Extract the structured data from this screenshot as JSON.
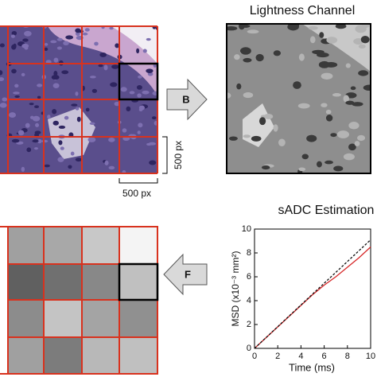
{
  "panel_a": {
    "scale_vertical": "500 px",
    "scale_horizontal": "500 px"
  },
  "arrow_b": {
    "label": "B"
  },
  "lightness_channel": {
    "title": "Lightness Channel"
  },
  "arrow_f": {
    "label": "F"
  },
  "chart_data": {
    "type": "line",
    "title": "sADC Estimation",
    "x_label": "Time (ms)",
    "y_label": "MSD (x10⁻³ mm²)",
    "series": [
      {
        "color": "#d62728",
        "dash": false,
        "x": [
          0,
          1,
          2,
          3,
          4,
          5,
          6,
          7,
          8,
          9,
          10
        ],
        "values": [
          0,
          0.9,
          1.8,
          2.7,
          3.6,
          4.5,
          5.3,
          6.0,
          6.8,
          7.6,
          8.5
        ]
      },
      {
        "color": "#111111",
        "dash": true,
        "x": [
          0,
          10
        ],
        "values": [
          0,
          9.1
        ]
      }
    ],
    "xlim": [
      0,
      10
    ],
    "ylim": [
      0,
      10
    ],
    "xticks": [
      0,
      2,
      4,
      6,
      8,
      10
    ],
    "yticks": [
      0,
      2,
      4,
      6,
      8,
      10
    ]
  }
}
